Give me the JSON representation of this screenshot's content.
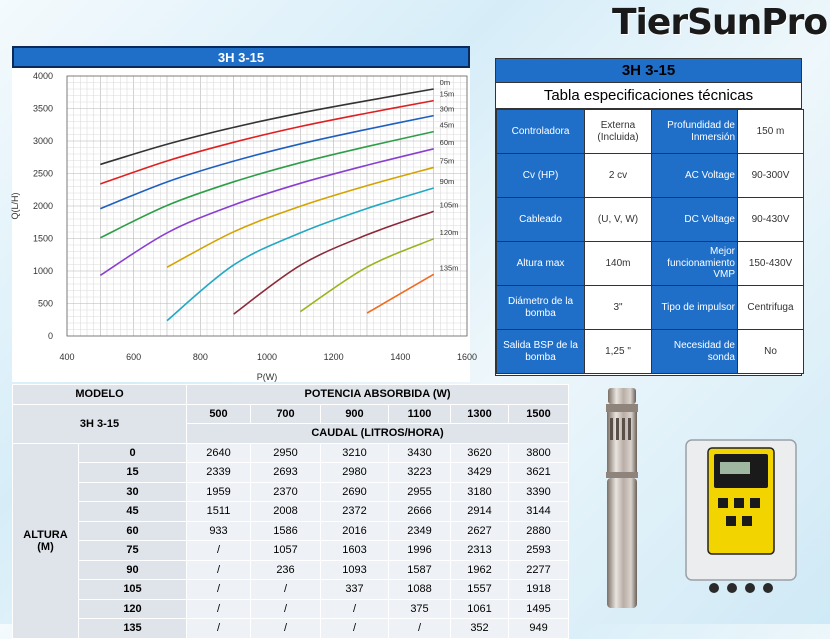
{
  "brand": {
    "name": "TierSunPro"
  },
  "chart": {
    "title": "3H 3-15"
  },
  "chart_data": {
    "type": "line",
    "xlabel": "P(W)",
    "ylabel": "Q(L/H)",
    "xlim": [
      400,
      1600
    ],
    "ylim": [
      0,
      4000
    ],
    "xticks": [
      400,
      600,
      800,
      1000,
      1200,
      1400,
      1600
    ],
    "yticks": [
      0,
      500,
      1000,
      1500,
      2000,
      2500,
      3000,
      3500,
      4000
    ],
    "grid": true,
    "series": [
      {
        "name": "0m",
        "color": "#333333",
        "x": [
          500,
          700,
          900,
          1100,
          1300,
          1500
        ],
        "y": [
          2640,
          2950,
          3210,
          3430,
          3620,
          3800
        ]
      },
      {
        "name": "15m",
        "color": "#e02020",
        "x": [
          500,
          700,
          900,
          1100,
          1300,
          1500
        ],
        "y": [
          2339,
          2693,
          2980,
          3223,
          3429,
          3621
        ]
      },
      {
        "name": "30m",
        "color": "#1f5fbf",
        "x": [
          500,
          700,
          900,
          1100,
          1300,
          1500
        ],
        "y": [
          1959,
          2370,
          2690,
          2955,
          3180,
          3390
        ]
      },
      {
        "name": "45m",
        "color": "#2e9e48",
        "x": [
          500,
          700,
          900,
          1100,
          1300,
          1500
        ],
        "y": [
          1511,
          2008,
          2372,
          2666,
          2914,
          3144
        ]
      },
      {
        "name": "60m",
        "color": "#8a3fd1",
        "x": [
          500,
          700,
          900,
          1100,
          1300,
          1500
        ],
        "y": [
          933,
          1586,
          2016,
          2349,
          2627,
          2880
        ]
      },
      {
        "name": "75m",
        "color": "#d4a300",
        "x": [
          700,
          900,
          1100,
          1300,
          1500
        ],
        "y": [
          1057,
          1603,
          1996,
          2313,
          2593
        ]
      },
      {
        "name": "90m",
        "color": "#22a8c4",
        "x": [
          700,
          900,
          1100,
          1300,
          1500
        ],
        "y": [
          236,
          1093,
          1587,
          1962,
          2277
        ]
      },
      {
        "name": "105m",
        "color": "#8b2a3a",
        "x": [
          900,
          1100,
          1300,
          1500
        ],
        "y": [
          337,
          1088,
          1557,
          1918
        ]
      },
      {
        "name": "120m",
        "color": "#9ab31c",
        "x": [
          1100,
          1300,
          1500
        ],
        "y": [
          375,
          1061,
          1495
        ]
      },
      {
        "name": "135m",
        "color": "#f06a20",
        "x": [
          1300,
          1500
        ],
        "y": [
          352,
          949
        ]
      }
    ]
  },
  "spec": {
    "title": "3H 3-15",
    "subtitle": "Tabla especificaciones técnicas",
    "rows": [
      {
        "l1": "Controladora",
        "v1": "Externa (Incluida)",
        "l2": "Profundidad de Inmersión",
        "v2": "150 m"
      },
      {
        "l1": "Cv (HP)",
        "v1": "2 cv",
        "l2": "AC Voltage",
        "v2": "90-300V"
      },
      {
        "l1": "Cableado",
        "v1": "(U, V, W)",
        "l2": "DC Voltage",
        "v2": "90-430V"
      },
      {
        "l1": "Altura max",
        "v1": "140m",
        "l2": "Mejor funcionamiento VMP",
        "v2": "150-430V"
      },
      {
        "l1": "Diámetro de la bomba",
        "v1": "3\"",
        "l2": "Tipo de impulsor",
        "v2": "Centrifuga"
      },
      {
        "l1": "Salida BSP de la bomba",
        "v1": "1,25 \"",
        "l2": "Necesidad de sonda",
        "v2": "No"
      }
    ]
  },
  "perf": {
    "modelo_label": "MODELO",
    "model": "3H 3-15",
    "potencia_label": "POTENCIA ABSORBIDA (W)",
    "caudal_label": "CAUDAL (LITROS/HORA)",
    "altura_label": "ALTURA (M)",
    "powers": [
      "500",
      "700",
      "900",
      "1100",
      "1300",
      "1500"
    ],
    "rows": [
      {
        "h": "0",
        "v": [
          "2640",
          "2950",
          "3210",
          "3430",
          "3620",
          "3800"
        ]
      },
      {
        "h": "15",
        "v": [
          "2339",
          "2693",
          "2980",
          "3223",
          "3429",
          "3621"
        ]
      },
      {
        "h": "30",
        "v": [
          "1959",
          "2370",
          "2690",
          "2955",
          "3180",
          "3390"
        ]
      },
      {
        "h": "45",
        "v": [
          "1511",
          "2008",
          "2372",
          "2666",
          "2914",
          "3144"
        ]
      },
      {
        "h": "60",
        "v": [
          "933",
          "1586",
          "2016",
          "2349",
          "2627",
          "2880"
        ]
      },
      {
        "h": "75",
        "v": [
          "/",
          "1057",
          "1603",
          "1996",
          "2313",
          "2593"
        ]
      },
      {
        "h": "90",
        "v": [
          "/",
          "236",
          "1093",
          "1587",
          "1962",
          "2277"
        ]
      },
      {
        "h": "105",
        "v": [
          "/",
          "/",
          "337",
          "1088",
          "1557",
          "1918"
        ]
      },
      {
        "h": "120",
        "v": [
          "/",
          "/",
          "/",
          "375",
          "1061",
          "1495"
        ]
      },
      {
        "h": "135",
        "v": [
          "/",
          "/",
          "/",
          "/",
          "352",
          "949"
        ]
      }
    ]
  }
}
